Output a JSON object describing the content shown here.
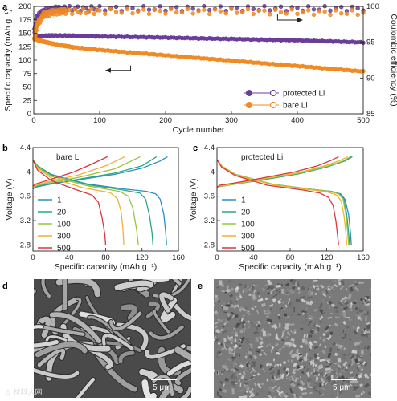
{
  "panels": {
    "a": {
      "letter": "a"
    },
    "b": {
      "letter": "b",
      "inset_label": "bare Li"
    },
    "c": {
      "letter": "c",
      "inset_label": "protected Li"
    },
    "d": {
      "letter": "d",
      "scale_label": "5 μm"
    },
    "e": {
      "letter": "e",
      "scale_label": "5 μm"
    }
  },
  "watermark": "⊙ 材料人网",
  "chart_data": [
    {
      "id": "a",
      "type": "scatter",
      "xlabel": "Cycle number",
      "ylabel_left": "Specific capacity (mAh g⁻¹)",
      "ylabel_right": "Coulombic efficiency (%)",
      "xlim": [
        0,
        500
      ],
      "ylim_left": [
        0,
        200
      ],
      "ylim_right": [
        85,
        100
      ],
      "xticks": [
        0,
        100,
        200,
        300,
        400,
        500
      ],
      "yticks_left": [
        0,
        25,
        50,
        75,
        100,
        125,
        150,
        175,
        200
      ],
      "yticks_right": [
        85,
        90,
        95,
        100
      ],
      "legend_position": "bottom-right",
      "legend": [
        "protected Li",
        "bare Li"
      ],
      "colors": {
        "protected": "#6a3d9a",
        "bare": "#f08a24"
      },
      "series": [
        {
          "name": "protected Li",
          "metric": "capacity",
          "axis": "left",
          "x": [
            1,
            10,
            30,
            60,
            100,
            150,
            200,
            250,
            300,
            350,
            400,
            450,
            500
          ],
          "values": [
            140,
            145,
            146,
            145.5,
            144,
            143,
            142,
            140.5,
            139.5,
            138,
            137,
            135,
            133
          ]
        },
        {
          "name": "bare Li",
          "metric": "capacity",
          "axis": "left",
          "x": [
            1,
            10,
            20,
            40,
            60,
            100,
            150,
            200,
            250,
            300,
            350,
            400,
            450,
            500
          ],
          "values": [
            140,
            136,
            133,
            128,
            124,
            119,
            114,
            109,
            104,
            99,
            94,
            89,
            84,
            79
          ]
        },
        {
          "name": "protected Li",
          "metric": "coulombic efficiency",
          "axis": "right",
          "x": [
            1,
            5,
            15,
            30,
            50,
            100,
            200,
            300,
            400,
            500
          ],
          "values": [
            96.5,
            98.5,
            99.3,
            99.6,
            99.7,
            99.7,
            99.7,
            99.7,
            99.7,
            99.7
          ]
        },
        {
          "name": "bare Li",
          "metric": "coulombic efficiency",
          "axis": "right",
          "x": [
            1,
            5,
            15,
            30,
            50,
            100,
            200,
            300,
            400,
            500
          ],
          "values": [
            95.5,
            97.5,
            98.8,
            99.2,
            99.3,
            99.3,
            99.3,
            99.3,
            99.2,
            99.1
          ]
        }
      ],
      "annotations": [
        "arrow right toward Coulombic efficiency axis",
        "arrow left toward specific capacity axis"
      ]
    },
    {
      "id": "b",
      "type": "line",
      "title": "bare Li",
      "xlabel": "Specific capacity (mAh g⁻¹)",
      "ylabel": "Voltage (V)",
      "xlim": [
        0,
        160
      ],
      "ylim": [
        2.7,
        4.4
      ],
      "xticks": [
        0,
        40,
        80,
        120,
        160
      ],
      "yticks": [
        2.8,
        3.2,
        3.6,
        4.0,
        4.4
      ],
      "legend_position": "left",
      "series": [
        {
          "name": "1",
          "color": "#2a8fc0",
          "charge": {
            "x": [
              0,
              3,
              20,
              50,
              90,
              120,
              140,
              148
            ],
            "y": [
              3.72,
              3.75,
              3.8,
              3.87,
              3.96,
              4.06,
              4.18,
              4.25
            ]
          },
          "discharge": {
            "x": [
              0,
              5,
              20,
              60,
              100,
              125,
              135,
              140,
              144,
              146,
              147
            ],
            "y": [
              4.2,
              4.1,
              3.96,
              3.8,
              3.72,
              3.68,
              3.64,
              3.55,
              3.3,
              3.0,
              2.8
            ]
          }
        },
        {
          "name": "20",
          "color": "#27a884",
          "charge": {
            "x": [
              0,
              3,
              20,
              50,
              90,
              120,
              136
            ],
            "y": [
              3.73,
              3.76,
              3.81,
              3.88,
              3.98,
              4.1,
              4.25
            ]
          },
          "discharge": {
            "x": [
              0,
              5,
              20,
              60,
              100,
              118,
              124,
              128,
              131,
              132
            ],
            "y": [
              4.2,
              4.1,
              3.95,
              3.79,
              3.7,
              3.65,
              3.55,
              3.3,
              3.0,
              2.8
            ]
          }
        },
        {
          "name": "100",
          "color": "#9bc53d",
          "charge": {
            "x": [
              0,
              3,
              20,
              50,
              90,
              118
            ],
            "y": [
              3.74,
              3.77,
              3.83,
              3.91,
              4.05,
              4.25
            ]
          },
          "discharge": {
            "x": [
              0,
              5,
              20,
              60,
              95,
              105,
              110,
              114,
              116
            ],
            "y": [
              4.2,
              4.08,
              3.93,
              3.77,
              3.68,
              3.6,
              3.4,
              3.05,
              2.8
            ]
          }
        },
        {
          "name": "300",
          "color": "#f2b134",
          "charge": {
            "x": [
              0,
              3,
              20,
              50,
              80,
              101
            ],
            "y": [
              3.75,
              3.78,
              3.85,
              3.95,
              4.1,
              4.25
            ]
          },
          "discharge": {
            "x": [
              0,
              5,
              20,
              55,
              85,
              93,
              97,
              99,
              100
            ],
            "y": [
              4.2,
              4.06,
              3.9,
              3.74,
              3.66,
              3.56,
              3.35,
              3.05,
              2.8
            ]
          }
        },
        {
          "name": "500",
          "color": "#d9363e",
          "charge": {
            "x": [
              0,
              3,
              20,
              45,
              65,
              82
            ],
            "y": [
              3.77,
              3.8,
              3.88,
              4.0,
              4.13,
              4.25
            ]
          },
          "discharge": {
            "x": [
              0,
              5,
              20,
              45,
              65,
              72,
              76,
              79,
              80
            ],
            "y": [
              4.2,
              4.03,
              3.86,
              3.72,
              3.62,
              3.5,
              3.25,
              2.98,
              2.8
            ]
          }
        }
      ]
    },
    {
      "id": "c",
      "type": "line",
      "title": "protected Li",
      "xlabel": "Specific capacity (mAh g⁻¹)",
      "ylabel": "Voltage (V)",
      "xlim": [
        0,
        160
      ],
      "ylim": [
        2.7,
        4.4
      ],
      "xticks": [
        0,
        40,
        80,
        120,
        160
      ],
      "yticks": [
        2.8,
        3.2,
        3.6,
        4.0,
        4.4
      ],
      "legend_position": "left",
      "series": [
        {
          "name": "1",
          "color": "#2a8fc0",
          "charge": {
            "x": [
              0,
              3,
              20,
              50,
              90,
              120,
              140,
              148
            ],
            "y": [
              3.73,
              3.76,
              3.8,
              3.87,
              3.97,
              4.08,
              4.18,
              4.25
            ]
          },
          "discharge": {
            "x": [
              0,
              5,
              20,
              60,
              100,
              125,
              135,
              140,
              144,
              146,
              147
            ],
            "y": [
              4.2,
              4.1,
              3.96,
              3.8,
              3.72,
              3.68,
              3.64,
              3.55,
              3.3,
              3.0,
              2.8
            ]
          }
        },
        {
          "name": "20",
          "color": "#27a884",
          "charge": {
            "x": [
              0,
              3,
              20,
              50,
              90,
              120,
              139,
              147
            ],
            "y": [
              3.73,
              3.76,
              3.8,
              3.87,
              3.97,
              4.08,
              4.18,
              4.25
            ]
          },
          "discharge": {
            "x": [
              0,
              5,
              20,
              60,
              100,
              124,
              134,
              139,
              142,
              144,
              145
            ],
            "y": [
              4.2,
              4.1,
              3.96,
              3.8,
              3.72,
              3.68,
              3.64,
              3.55,
              3.3,
              3.0,
              2.8
            ]
          }
        },
        {
          "name": "100",
          "color": "#9bc53d",
          "charge": {
            "x": [
              0,
              3,
              20,
              50,
              90,
              120,
              138,
              146
            ],
            "y": [
              3.73,
              3.76,
              3.8,
              3.88,
              3.98,
              4.09,
              4.18,
              4.25
            ]
          },
          "discharge": {
            "x": [
              0,
              5,
              20,
              60,
              100,
              123,
              133,
              138,
              141,
              143,
              144
            ],
            "y": [
              4.2,
              4.1,
              3.96,
              3.8,
              3.72,
              3.68,
              3.64,
              3.55,
              3.3,
              3.0,
              2.8
            ]
          }
        },
        {
          "name": "300",
          "color": "#f2b134",
          "charge": {
            "x": [
              0,
              3,
              20,
              50,
              90,
              118,
              135,
              143
            ],
            "y": [
              3.74,
              3.77,
              3.81,
              3.89,
              3.99,
              4.1,
              4.19,
              4.25
            ]
          },
          "discharge": {
            "x": [
              0,
              5,
              20,
              60,
              100,
              121,
              131,
              136,
              139,
              141,
              142
            ],
            "y": [
              4.2,
              4.1,
              3.95,
              3.79,
              3.71,
              3.67,
              3.62,
              3.52,
              3.28,
              3.0,
              2.8
            ]
          }
        },
        {
          "name": "500",
          "color": "#d9363e",
          "charge": {
            "x": [
              0,
              3,
              20,
              50,
              85,
              110,
              125,
              133
            ],
            "y": [
              3.75,
              3.78,
              3.82,
              3.9,
              4.0,
              4.1,
              4.19,
              4.25
            ]
          },
          "discharge": {
            "x": [
              0,
              5,
              20,
              55,
              95,
              113,
              122,
              127,
              130,
              132,
              133
            ],
            "y": [
              4.2,
              4.08,
              3.94,
              3.78,
              3.7,
              3.65,
              3.58,
              3.45,
              3.2,
              2.95,
              2.8
            ]
          }
        }
      ]
    }
  ]
}
